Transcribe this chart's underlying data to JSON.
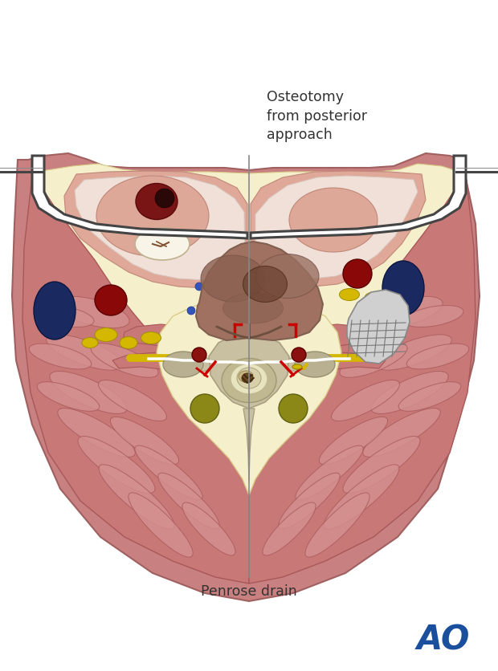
{
  "label_osteotomy": "Osteotomy\nfrom posterior\napproach",
  "label_penrose": "Penrose drain",
  "ao_text": "AO",
  "ao_color": "#1a4f9e",
  "bg_color": "#ffffff",
  "skin_color": "#c98080",
  "skin_ec": "#a06060",
  "fat_color": "#f5efcc",
  "fat_ec": "#d8cc88",
  "muscle_color": "#c97878",
  "muscle_ec": "#a85858",
  "muscle_line": "#b86060",
  "muscle_inner": "#d49090",
  "bone_color": "#c8c0a0",
  "bone_ec": "#a8a080",
  "spinal_cord_bg": "#d0c898",
  "spinal_cord_fg": "#e8e0b8",
  "tumor_main": "#a07060",
  "tumor_mid": "#8a6050",
  "tumor_dark": "#6a4030",
  "tumor_light": "#b88878",
  "dark_blue": "#1a2a60",
  "dark_red": "#8B1010",
  "bright_red": "#cc2222",
  "yellow": "#d4b800",
  "olive": "#8b8000",
  "small_blue": "#3355bb",
  "small_red": "#cc2222",
  "retractor_ec": "#444444",
  "label_color": "#333333",
  "line_color": "#777777",
  "white": "#ffffff",
  "gray_line": "#888888"
}
